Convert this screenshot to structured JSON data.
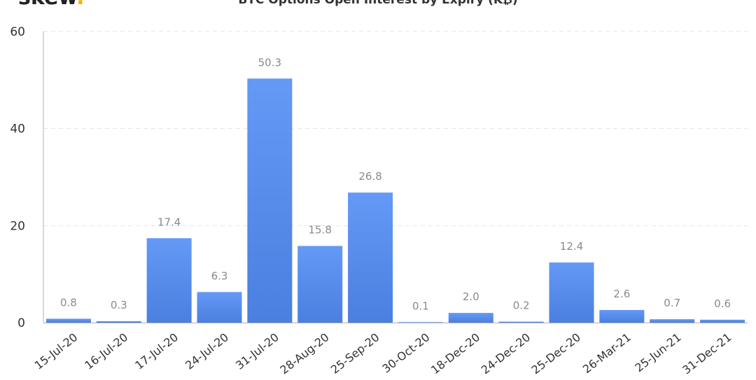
{
  "brand": {
    "name": "skew",
    "dot": ".",
    "dot_color": "#f5b400"
  },
  "chart_data": {
    "type": "bar",
    "title": "BTC Options Open Interest by Expiry (K₿)",
    "xlabel": "",
    "ylabel": "",
    "ylim": [
      0,
      60
    ],
    "yticks": [
      0,
      20,
      40,
      60
    ],
    "grid": true,
    "bar_color_top": "#6499f6",
    "bar_color_bottom": "#4b7fe0",
    "categories": [
      "15-Jul-20",
      "16-Jul-20",
      "17-Jul-20",
      "24-Jul-20",
      "31-Jul-20",
      "28-Aug-20",
      "25-Sep-20",
      "30-Oct-20",
      "18-Dec-20",
      "24-Dec-20",
      "25-Dec-20",
      "26-Mar-21",
      "25-Jun-21",
      "31-Dec-21"
    ],
    "values": [
      0.8,
      0.3,
      17.4,
      6.3,
      50.3,
      15.8,
      26.8,
      0.1,
      2.0,
      0.2,
      12.4,
      2.6,
      0.7,
      0.6
    ],
    "value_labels": [
      "0.8",
      "0.3",
      "17.4",
      "6.3",
      "50.3",
      "15.8",
      "26.8",
      "0.1",
      "2.0",
      "0.2",
      "12.4",
      "2.6",
      "0.7",
      "0.6"
    ]
  }
}
